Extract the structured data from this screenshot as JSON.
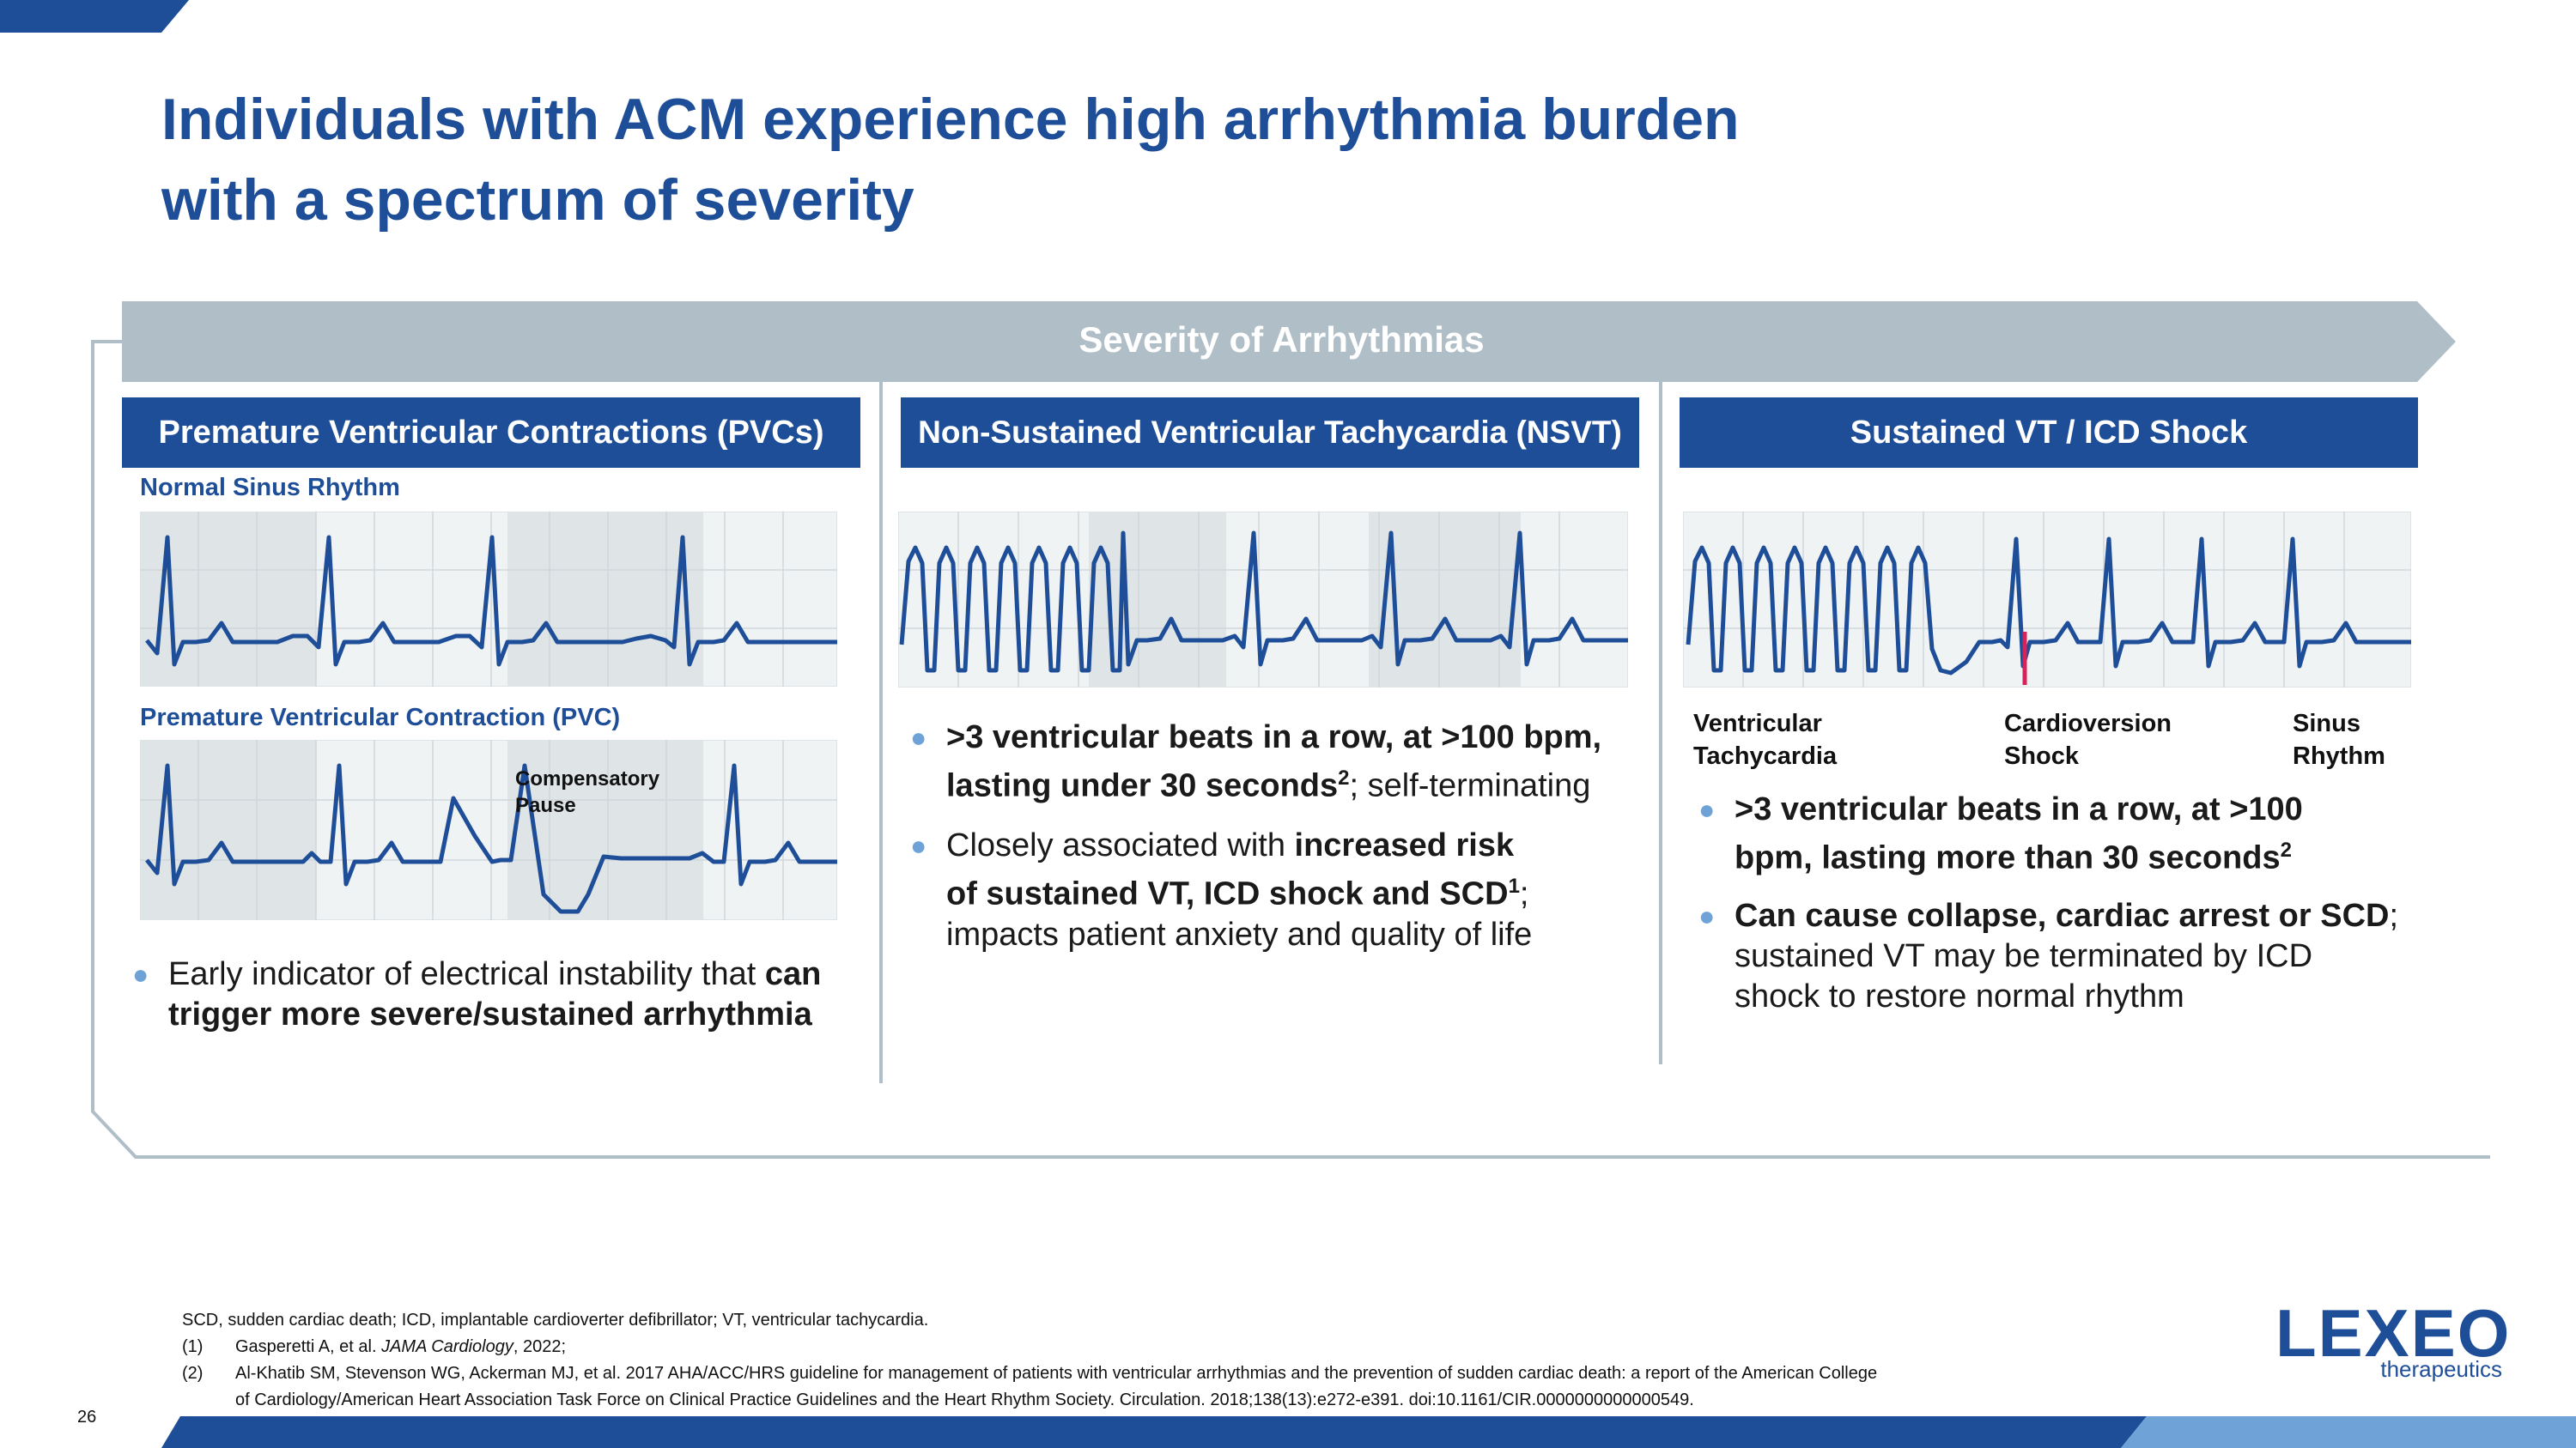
{
  "slide": {
    "title_line1": "Individuals with ACM experience high arrhythmia burden",
    "title_line2": "with a spectrum of severity",
    "banner": "Severity of Arrhythmias",
    "page_number": "26"
  },
  "columns": [
    {
      "header": "Premature Ventricular Contractions (PVCs)",
      "sublabel1": "Normal Sinus Rhythm",
      "sublabel2": "Premature Ventricular Contraction (PVC)",
      "annotation_line1": "Compensatory",
      "annotation_line2": "Pause",
      "bullet1_text": "Early indicator of electrical instability that ",
      "bullet1_bold": "can trigger more severe/sustained arrhythmia"
    },
    {
      "header": "Non-Sustained Ventricular Tachycardia (NSVT)",
      "bullet1_bold": ">3 ventricular beats in a row, at >100 bpm, lasting under 30 seconds",
      "bullet1_sup": "2",
      "bullet1_text": "; self-terminating",
      "bullet2_text": "Closely associated with ",
      "bullet2_bold": "increased risk of sustained VT, ICD shock and SCD",
      "bullet2_sup": "1",
      "bullet2_text2": "; impacts patient anxiety and quality of life"
    },
    {
      "header": "Sustained VT / ICD Shock",
      "label_a1": "Ventricular",
      "label_a2": "Tachycardia",
      "label_b1": "Cardioversion",
      "label_b2": "Shock",
      "label_c1": "Sinus",
      "label_c2": "Rhythm",
      "bullet1_bold": ">3 ventricular beats in a row, at >100 bpm, lasting more than 30 seconds",
      "bullet1_sup": "2",
      "bullet2_bold": "Can cause collapse, cardiac arrest or SCD",
      "bullet2_text": "; sustained VT may be terminated by ICD shock to restore normal rhythm"
    }
  ],
  "footnotes": {
    "abbrev": "SCD, sudden cardiac death; ICD, implantable cardioverter defibrillator; VT, ventricular tachycardia.",
    "n1": "(1)",
    "ref1a": "Gasperetti A, et al. ",
    "ref1b": "JAMA Cardiology",
    "ref1c": ", 2022;",
    "n2": "(2)",
    "ref2_line1": "Al-Khatib SM, Stevenson WG, Ackerman MJ, et al. 2017 AHA/ACC/HRS guideline for management of patients with ventricular arrhythmias and the prevention of sudden cardiac death: a report of the American College",
    "ref2_line2": "of Cardiology/American Heart Association Task Force on Clinical Practice Guidelines and the Heart Rhythm Society. Circulation. 2018;138(13):e272-e391. doi:10.1161/CIR.0000000000000549."
  },
  "logo": {
    "word": "LEXEO",
    "sub": "therapeutics"
  },
  "colors": {
    "brand_blue": "#1f4e99",
    "banner_gray": "#b0bfc7",
    "ecg_line": "#1f4e99",
    "shock_marker": "#d6235a",
    "bullet_dot": "#6fa3d8",
    "light_blue_bar": "#6fa3d8"
  }
}
